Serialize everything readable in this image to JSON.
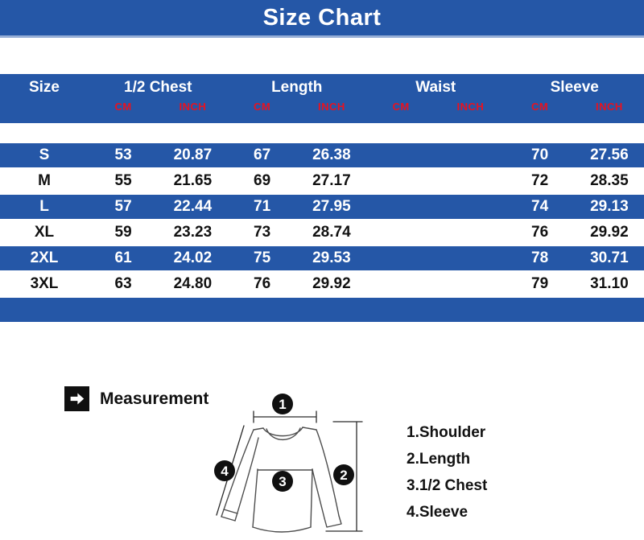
{
  "title": "Size Chart",
  "table": {
    "size_header": "Size",
    "groups": [
      {
        "label": "1/2 Chest"
      },
      {
        "label": "Length"
      },
      {
        "label": "Waist"
      },
      {
        "label": "Sleeve"
      }
    ],
    "unit_cm": "CM",
    "unit_inch": "INCH"
  },
  "chart_data": {
    "type": "table",
    "title": "Size Chart",
    "columns": [
      "Size",
      "1/2 Chest CM",
      "1/2 Chest INCH",
      "Length CM",
      "Length INCH",
      "Waist CM",
      "Waist INCH",
      "Sleeve CM",
      "Sleeve INCH"
    ],
    "rows": [
      [
        "S",
        "53",
        "20.87",
        "67",
        "26.38",
        "",
        "",
        "70",
        "27.56"
      ],
      [
        "M",
        "55",
        "21.65",
        "69",
        "27.17",
        "",
        "",
        "72",
        "28.35"
      ],
      [
        "L",
        "57",
        "22.44",
        "71",
        "27.95",
        "",
        "",
        "74",
        "29.13"
      ],
      [
        "XL",
        "59",
        "23.23",
        "73",
        "28.74",
        "",
        "",
        "76",
        "29.92"
      ],
      [
        "2XL",
        "61",
        "24.02",
        "75",
        "29.53",
        "",
        "",
        "78",
        "30.71"
      ],
      [
        "3XL",
        "63",
        "24.80",
        "76",
        "29.92",
        "",
        "",
        "79",
        "31.10"
      ]
    ]
  },
  "measurement": {
    "label": "Measurement",
    "legend": [
      "1.Shoulder",
      "2.Length",
      "3.1/2 Chest",
      "4.Sleeve"
    ],
    "diagram_numbers": [
      "1",
      "2",
      "3",
      "4"
    ]
  },
  "colors": {
    "blue": "#2557a7",
    "red": "#e8121f",
    "title_underline": "#96aed6"
  }
}
